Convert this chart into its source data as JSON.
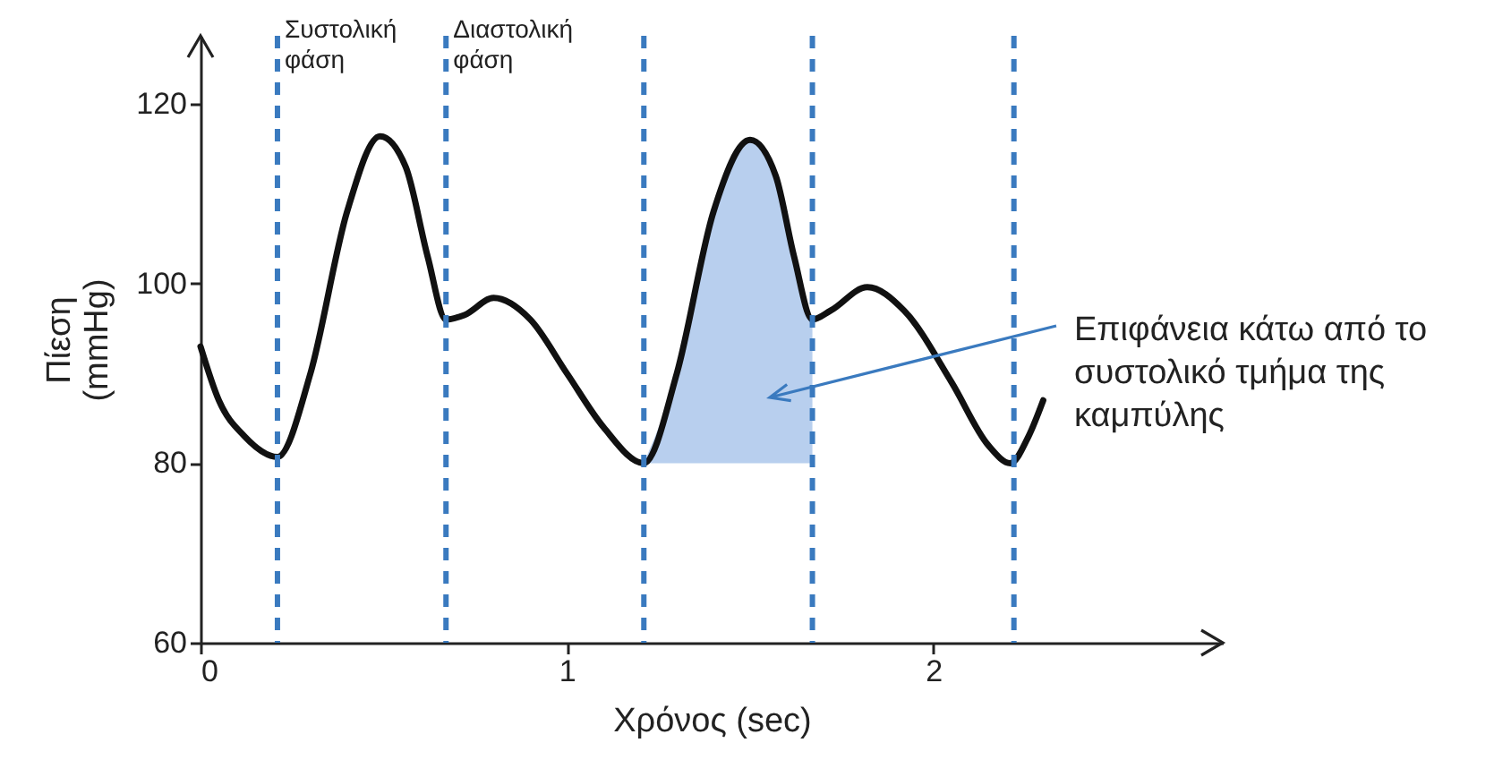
{
  "chart_data": {
    "type": "line",
    "xlabel": "Χρόνος (sec)",
    "ylabel": "Πίεση\n(mmHg)",
    "xlim": [
      0,
      2.79
    ],
    "xticks": [
      0,
      1,
      2
    ],
    "ylim": [
      60,
      127.6
    ],
    "yticks": [
      60,
      80,
      100,
      120
    ],
    "grid": false,
    "marker": "none",
    "series": [
      {
        "type": "area",
        "color": "#b8cfee",
        "x": [
          1.21,
          1.3,
          1.4,
          1.5,
          1.57,
          1.62,
          1.67
        ],
        "values": [
          80,
          90,
          108,
          116,
          112,
          103,
          96
        ]
      },
      {
        "color": "#111111",
        "line_style": "solid",
        "x": [
          0,
          0.05,
          0.12,
          0.21,
          0.3,
          0.4,
          0.49,
          0.56,
          0.62,
          0.67,
          0.72,
          0.8,
          0.9,
          1.0,
          1.1,
          1.21,
          1.3,
          1.4,
          1.5,
          1.57,
          1.62,
          1.67,
          1.72,
          1.82,
          1.92,
          2.05,
          2.15,
          2.21,
          2.26,
          2.3
        ],
        "values": [
          93,
          87,
          83,
          80.7,
          90,
          108,
          116.4,
          113,
          103,
          96,
          96.5,
          98.4,
          96,
          90,
          84,
          80,
          90,
          108,
          116,
          112,
          103,
          96,
          97,
          99.6,
          97,
          89,
          82,
          80,
          83,
          87
        ]
      }
    ],
    "ref_lines": [
      {
        "axis": "x",
        "value": 0.21,
        "color": "#3a7abf",
        "line_style": "dashed"
      },
      {
        "axis": "x",
        "value": 0.67,
        "color": "#3a7abf",
        "line_style": "dashed"
      },
      {
        "axis": "x",
        "value": 1.21,
        "color": "#3a7abf",
        "line_style": "dashed"
      },
      {
        "axis": "x",
        "value": 1.67,
        "color": "#3a7abf",
        "line_style": "dashed"
      },
      {
        "axis": "x",
        "value": 2.22,
        "color": "#3a7abf",
        "line_style": "dashed"
      }
    ],
    "annotations": [
      {
        "text": "Συστολική\nφάση",
        "x": 0.21,
        "y": 127.6
      },
      {
        "text": "Διαστολική\nφάση",
        "x": 0.67,
        "y": 127.6
      },
      "Επιφάνεια κάτω από το\nσυστολικό τμήμα της\nκαμπύλης"
    ]
  }
}
